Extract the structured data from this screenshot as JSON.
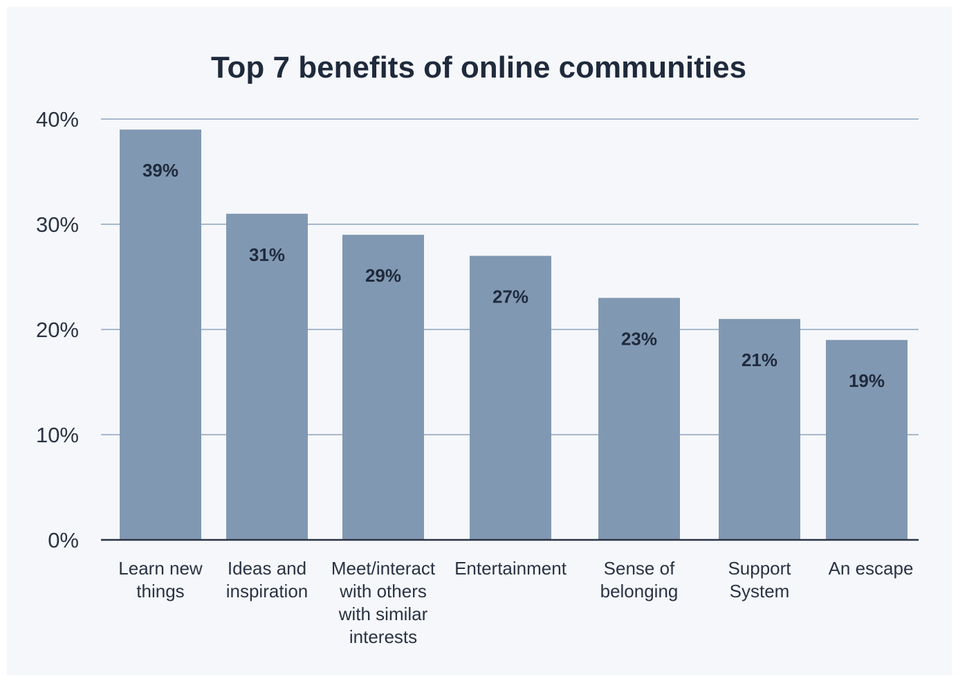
{
  "chart_data": {
    "type": "bar",
    "title": "Top 7 benefits of online communities",
    "categories": [
      [
        "Learn new",
        "things"
      ],
      [
        "Ideas and",
        "inspiration"
      ],
      [
        "Meet/interact",
        "with others",
        "with similar",
        "interests"
      ],
      [
        "Entertainment"
      ],
      [
        "Sense of",
        "belonging"
      ],
      [
        "Support",
        "System"
      ],
      [
        "An escape"
      ]
    ],
    "values": [
      39,
      31,
      29,
      27,
      23,
      21,
      19
    ],
    "data_labels": [
      "39%",
      "31%",
      "29%",
      "27%",
      "23%",
      "21%",
      "19%"
    ],
    "yticks": [
      "0%",
      "10%",
      "20%",
      "30%",
      "40%"
    ],
    "ytick_values": [
      0,
      10,
      20,
      30,
      40
    ],
    "ylim": [
      0,
      40
    ],
    "xlabel": "",
    "ylabel": "",
    "grid": true,
    "bar_color": "#8198b2",
    "background_color": "#f5f7fa"
  }
}
